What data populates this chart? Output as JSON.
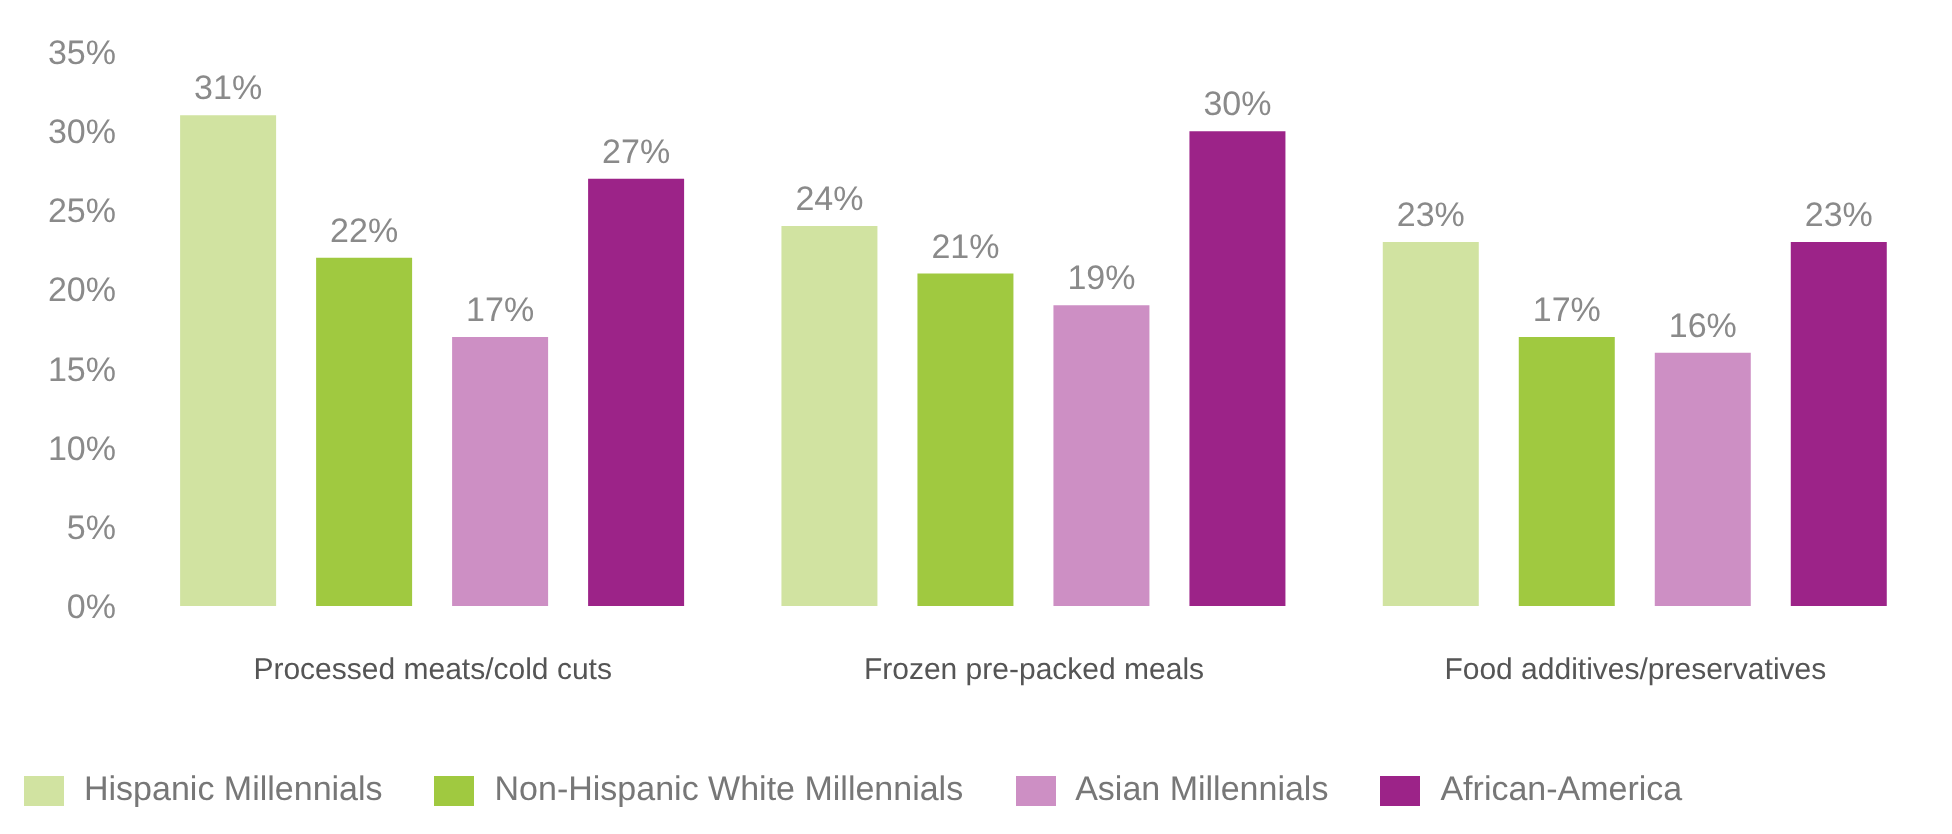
{
  "chart_data": {
    "type": "bar",
    "categories": [
      "Processed meats/cold cuts",
      "Frozen pre-packed meals",
      "Food additives/preservatives"
    ],
    "series": [
      {
        "name": "Hispanic Millennials",
        "color": "#d1e3a1",
        "values": [
          31,
          24,
          23
        ],
        "value_labels": [
          "31%",
          "24%",
          "23%"
        ]
      },
      {
        "name": "Non-Hispanic White Millennials",
        "color": "#a0c940",
        "values": [
          22,
          21,
          17
        ],
        "value_labels": [
          "22%",
          "21%",
          "17%"
        ]
      },
      {
        "name": "Asian Millennials",
        "color": "#cd8fc4",
        "values": [
          17,
          19,
          16
        ],
        "value_labels": [
          "17%",
          "19%",
          "16%"
        ]
      },
      {
        "name": "African-America",
        "color": "#9c2388",
        "values": [
          27,
          30,
          23
        ],
        "value_labels": [
          "27%",
          "30%",
          "23%"
        ]
      }
    ],
    "ylim": [
      0,
      35
    ],
    "yticks": [
      {
        "value": 0,
        "label": "0%"
      },
      {
        "value": 5,
        "label": "5%"
      },
      {
        "value": 10,
        "label": "10%"
      },
      {
        "value": 15,
        "label": "15%"
      },
      {
        "value": 20,
        "label": "20%"
      },
      {
        "value": 25,
        "label": "25%"
      },
      {
        "value": 30,
        "label": "30%"
      },
      {
        "value": 35,
        "label": "35%"
      }
    ],
    "grid": false,
    "legend": "bottom"
  }
}
